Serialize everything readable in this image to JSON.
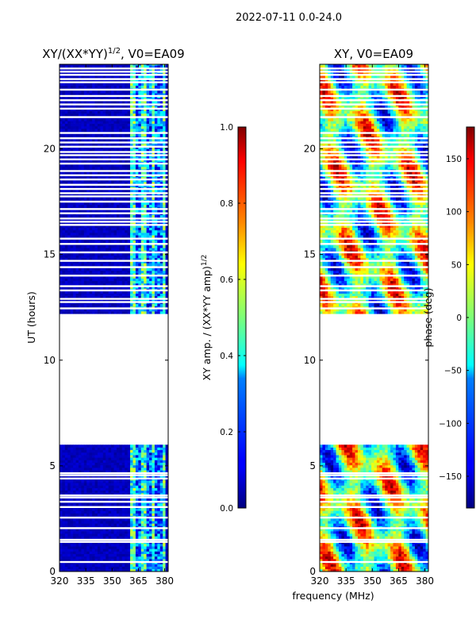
{
  "figure": {
    "suptitle": "2022-07-11 0.0-24.0",
    "shared_xlabel": "frequency (MHz)"
  },
  "chart_data": [
    {
      "type": "heatmap",
      "title_main": "XY/(XX*YY)",
      "title_sup": "1/2",
      "title_rest": ", V0=EA09",
      "xlabel": "",
      "ylabel": "UT (hours)",
      "xlim": [
        320,
        382
      ],
      "ylim": [
        0,
        24
      ],
      "xticks": [
        320,
        335,
        350,
        365,
        380
      ],
      "yticks": [
        0,
        5,
        10,
        15,
        20
      ],
      "colormap": "jet",
      "colorbar": {
        "label_main": "XY amp. / (XX*YY amp)",
        "label_sup": "1/2",
        "range": [
          0.0,
          1.0
        ],
        "ticks": [
          "0.0",
          "0.2",
          "0.4",
          "0.6",
          "0.8",
          "1.0"
        ]
      },
      "data_blocks_hours": [
        [
          0.0,
          6.0
        ],
        [
          12.2,
          24.0
        ]
      ],
      "flagged_hours": [
        0.45,
        1.4,
        1.5,
        2.05,
        2.55,
        3.05,
        3.3,
        3.5,
        3.6,
        4.4,
        4.55,
        4.65,
        12.45,
        12.75,
        12.9,
        13.3,
        13.5,
        14.0,
        14.4,
        14.7,
        15.1,
        15.5,
        15.75,
        16.4,
        16.55,
        16.7,
        16.95,
        17.15,
        17.5,
        17.75,
        17.9,
        18.1,
        18.3,
        18.55,
        18.75,
        18.95,
        19.3,
        19.5,
        19.7,
        19.85,
        20.1,
        20.3,
        20.5,
        20.75,
        21.5,
        21.9,
        22.1,
        22.3,
        22.5,
        22.8,
        23.15,
        23.3,
        23.5,
        23.65,
        23.8
      ]
    },
    {
      "type": "heatmap",
      "title_main": "XY, V0=EA09",
      "xlabel": "frequency (MHz)",
      "ylabel": "",
      "xlim": [
        320,
        382
      ],
      "ylim": [
        0,
        24
      ],
      "xticks": [
        320,
        335,
        350,
        365,
        380
      ],
      "yticks": [
        0,
        5,
        10,
        15,
        20
      ],
      "colormap": "jet",
      "colorbar": {
        "label": "phase (deg)",
        "range": [
          -180,
          180
        ],
        "ticks": [
          "−150",
          "−100",
          "−50",
          "0",
          "50",
          "100",
          "150"
        ],
        "tick_values": [
          -150,
          -100,
          -50,
          0,
          50,
          100,
          150
        ]
      },
      "data_blocks_hours": [
        [
          0.0,
          6.0
        ],
        [
          12.2,
          24.0
        ]
      ]
    }
  ],
  "colors": {
    "background": "#ffffff",
    "axes_edge": "#000000"
  }
}
